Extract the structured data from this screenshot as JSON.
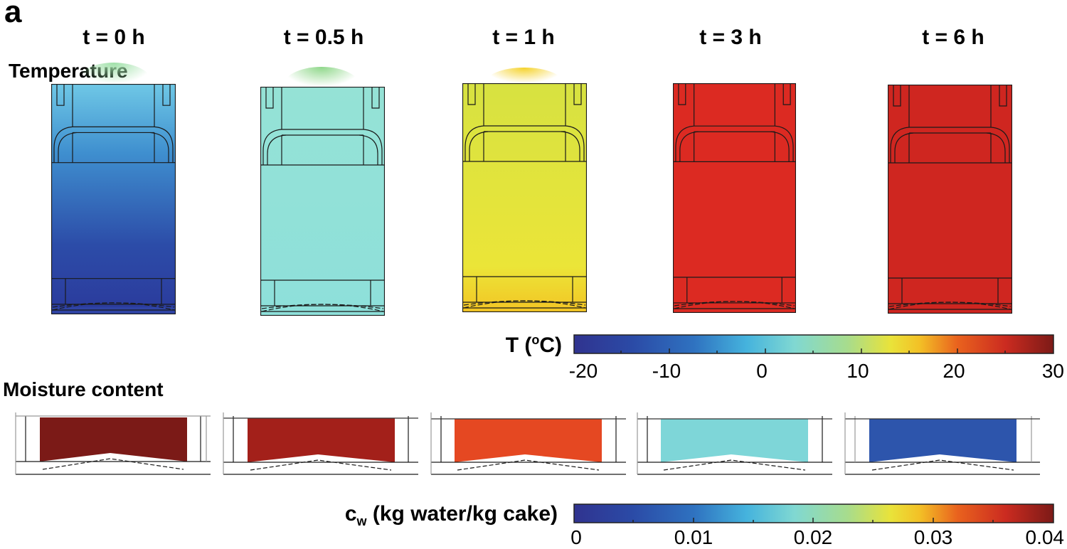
{
  "panel_label": "a",
  "time_labels": [
    "t = 0 h",
    "t = 0.5 h",
    "t = 1 h",
    "t = 3 h",
    "t = 6 h"
  ],
  "sections": {
    "temperature": "Temperature",
    "moisture": "Moisture content"
  },
  "colorbars": {
    "temperature": {
      "title": "T (",
      "title_sup": "o",
      "title_end": "C)",
      "ticks": [
        "-20",
        "-10",
        "0",
        "10",
        "20",
        "30"
      ],
      "range": [
        -20,
        30
      ]
    },
    "moisture": {
      "title_main": "c",
      "title_sub": "w",
      "title_end": " (kg water/kg cake)",
      "ticks": [
        "0",
        "0.01",
        "0.02",
        "0.03",
        "0.04"
      ],
      "range": [
        0,
        0.04
      ]
    }
  },
  "colors": {
    "jet": [
      "#30338f",
      "#2d5fb4",
      "#3aa7d6",
      "#7fd8d6",
      "#9fe0a5",
      "#e8e23a",
      "#f2b624",
      "#e5521f",
      "#c72a1f",
      "#7c1a17"
    ],
    "temp_t0_top": "#58b7df",
    "temp_t0_bottom": "#2b3d9e",
    "temp_t05": "#8ee0d9",
    "temp_t1": "#dfe43b",
    "temp_t3": "#dc2a22",
    "temp_t6": "#cf2620",
    "moist_t0": "#7b1a17",
    "moist_t05": "#a3201a",
    "moist_t1": "#e54822",
    "moist_t3": "#7ed6d8",
    "moist_t6": "#2d55ac"
  }
}
